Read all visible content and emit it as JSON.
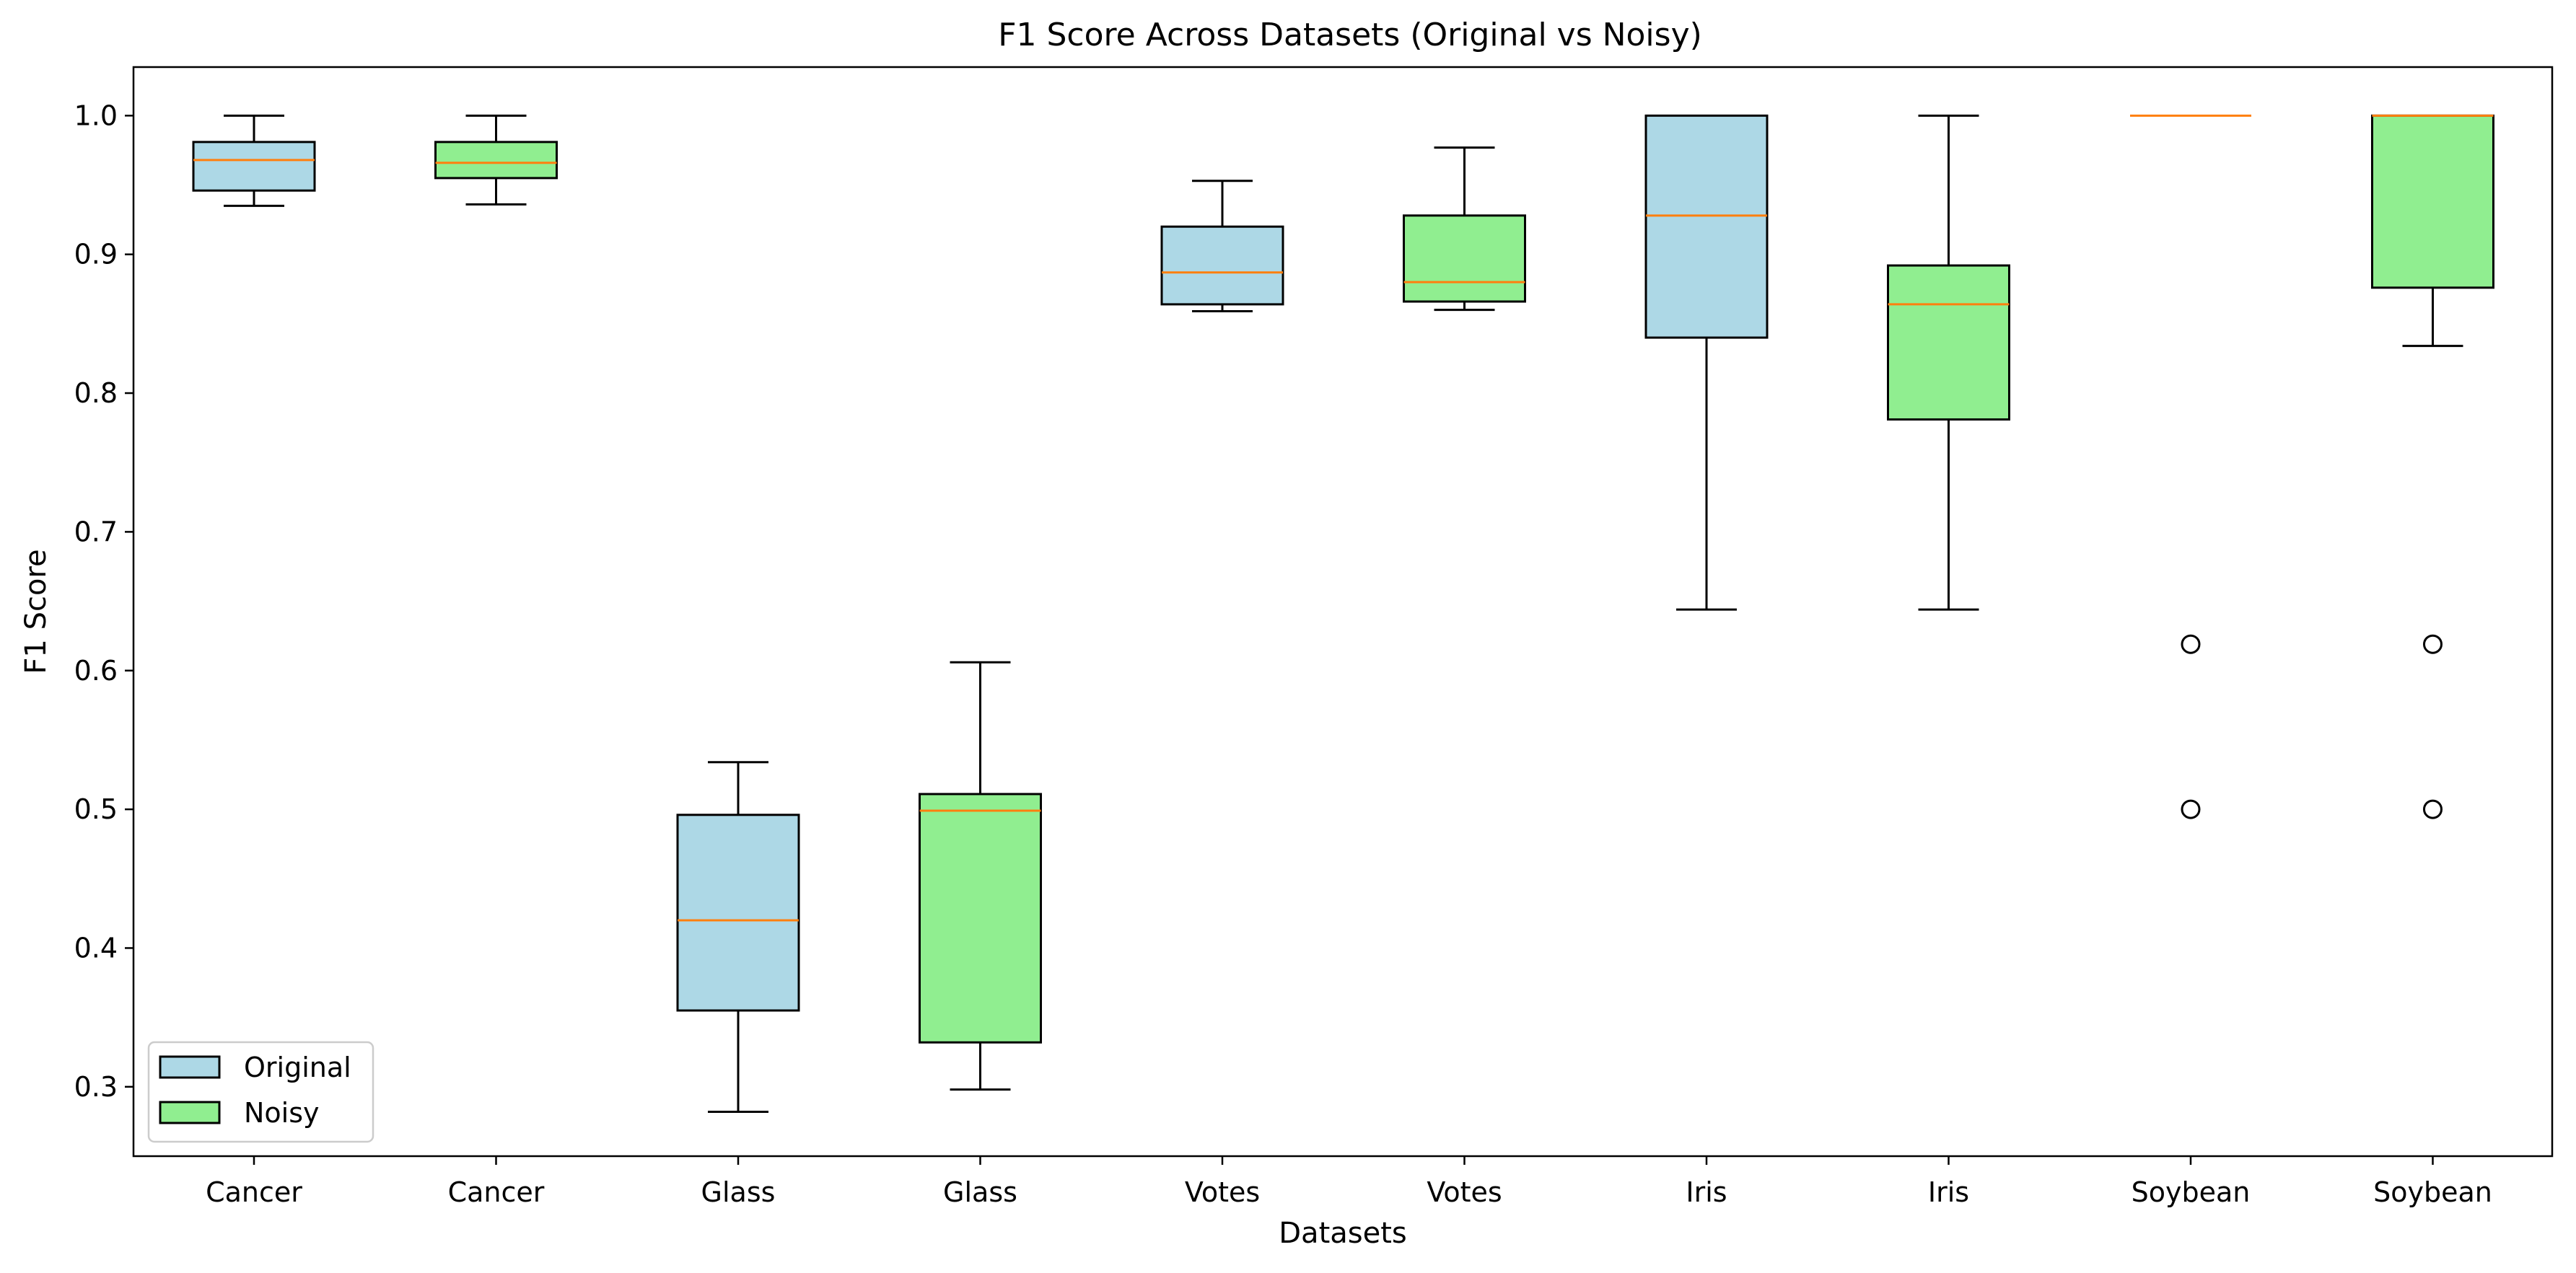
{
  "chart_data": {
    "type": "box",
    "title": "F1 Score Across Datasets (Original vs Noisy)",
    "xlabel": "Datasets",
    "ylabel": "F1 Score",
    "ylim": [
      0.25,
      1.035
    ],
    "yticks": [
      0.3,
      0.4,
      0.5,
      0.6,
      0.7,
      0.8,
      0.9,
      1.0
    ],
    "grid": false,
    "legend": {
      "placement": "lower-left",
      "entries": [
        {
          "label": "Original",
          "color": "#add8e6"
        },
        {
          "label": "Noisy",
          "color": "#90ee90"
        }
      ]
    },
    "median_color": "#ff7f0e",
    "categories": [
      "Cancer",
      "Cancer",
      "Glass",
      "Glass",
      "Votes",
      "Votes",
      "Iris",
      "Iris",
      "Soybean",
      "Soybean"
    ],
    "boxes": [
      {
        "category": "Cancer",
        "group": "Original",
        "whisker_low": 0.935,
        "q1": 0.946,
        "median": 0.968,
        "q3": 0.981,
        "whisker_high": 1.0,
        "fliers": []
      },
      {
        "category": "Cancer",
        "group": "Noisy",
        "whisker_low": 0.936,
        "q1": 0.955,
        "median": 0.966,
        "q3": 0.981,
        "whisker_high": 1.0,
        "fliers": []
      },
      {
        "category": "Glass",
        "group": "Original",
        "whisker_low": 0.282,
        "q1": 0.355,
        "median": 0.42,
        "q3": 0.496,
        "whisker_high": 0.534,
        "fliers": []
      },
      {
        "category": "Glass",
        "group": "Noisy",
        "whisker_low": 0.298,
        "q1": 0.332,
        "median": 0.499,
        "q3": 0.511,
        "whisker_high": 0.606,
        "fliers": []
      },
      {
        "category": "Votes",
        "group": "Original",
        "whisker_low": 0.859,
        "q1": 0.864,
        "median": 0.887,
        "q3": 0.92,
        "whisker_high": 0.953,
        "fliers": []
      },
      {
        "category": "Votes",
        "group": "Noisy",
        "whisker_low": 0.86,
        "q1": 0.866,
        "median": 0.88,
        "q3": 0.928,
        "whisker_high": 0.977,
        "fliers": []
      },
      {
        "category": "Iris",
        "group": "Original",
        "whisker_low": 0.644,
        "q1": 0.84,
        "median": 0.928,
        "q3": 1.0,
        "whisker_high": 1.0,
        "fliers": []
      },
      {
        "category": "Iris",
        "group": "Noisy",
        "whisker_low": 0.644,
        "q1": 0.781,
        "median": 0.864,
        "q3": 0.892,
        "whisker_high": 1.0,
        "fliers": []
      },
      {
        "category": "Soybean",
        "group": "Original",
        "whisker_low": 1.0,
        "q1": 1.0,
        "median": 1.0,
        "q3": 1.0,
        "whisker_high": 1.0,
        "fliers": [
          0.619,
          0.5
        ]
      },
      {
        "category": "Soybean",
        "group": "Noisy",
        "whisker_low": 0.834,
        "q1": 0.876,
        "median": 1.0,
        "q3": 1.0,
        "whisker_high": 1.0,
        "fliers": [
          0.619,
          0.5
        ]
      }
    ]
  }
}
